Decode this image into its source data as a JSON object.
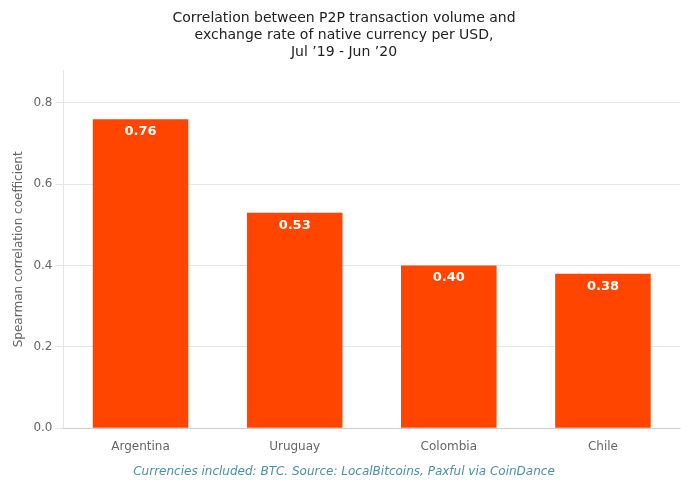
{
  "chart_data": {
    "type": "bar",
    "title": "Correlation between P2P transaction volume and\nexchange rate of native currency per USD,\nJul ’19 - Jun ’20",
    "categories": [
      "Argentina",
      "Uruguay",
      "Colombia",
      "Chile"
    ],
    "values": [
      0.76,
      0.53,
      0.4,
      0.38
    ],
    "value_labels": [
      "0.76",
      "0.53",
      "0.40",
      "0.38"
    ],
    "data_labels": true,
    "color": "#FF4500",
    "ylabel": "Spearman correlation coefficient",
    "ylim": [
      0,
      0.88
    ],
    "yticks": [
      {
        "value": 0,
        "label": "0.0"
      },
      0.2,
      0.4,
      0.6,
      0.8
    ],
    "grid": true,
    "footnote": "Currencies included: BTC. Source: LocalBitcoins, Paxful via CoinDance",
    "footnote_color": "#4A90A4"
  }
}
